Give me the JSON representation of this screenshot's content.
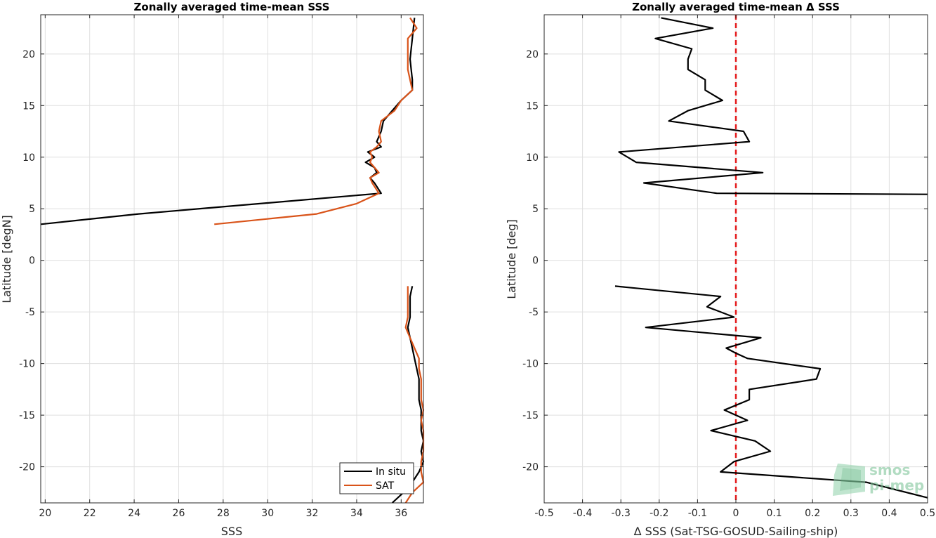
{
  "chart_data": [
    {
      "type": "line",
      "title": "Zonally averaged time-mean SSS",
      "xlabel": "SSS",
      "ylabel": "Latitude [degN]",
      "xlim": [
        19.8,
        37.0
      ],
      "ylim": [
        -23.5,
        23.8
      ],
      "xticks": [
        20,
        22,
        24,
        26,
        28,
        30,
        32,
        34,
        36
      ],
      "yticks": [
        -20,
        -15,
        -10,
        -5,
        0,
        5,
        10,
        15,
        20
      ],
      "grid": true,
      "legend_position": "bottom-right",
      "series": [
        {
          "name": "In situ",
          "color": "#000000",
          "segments": [
            [
              [
                36.6,
                23.5
              ],
              [
                36.5,
                21.5
              ],
              [
                36.4,
                19.5
              ],
              [
                36.5,
                17.5
              ],
              [
                36.5,
                16.5
              ],
              [
                36.0,
                15.5
              ],
              [
                35.6,
                14.5
              ],
              [
                35.2,
                13.5
              ],
              [
                35.1,
                12.5
              ],
              [
                34.9,
                11.5
              ],
              [
                35.1,
                11.0
              ],
              [
                34.5,
                10.5
              ],
              [
                34.8,
                10.0
              ],
              [
                34.4,
                9.5
              ],
              [
                34.8,
                9.0
              ],
              [
                34.9,
                8.5
              ],
              [
                34.6,
                8.0
              ],
              [
                34.8,
                7.5
              ],
              [
                35.1,
                6.5
              ],
              [
                24.2,
                4.5
              ],
              [
                19.8,
                3.5
              ]
            ],
            [
              [
                36.5,
                -2.5
              ],
              [
                36.4,
                -3.5
              ],
              [
                36.4,
                -5.5
              ],
              [
                36.3,
                -6.5
              ],
              [
                36.4,
                -7.5
              ],
              [
                36.5,
                -8.5
              ],
              [
                36.6,
                -9.5
              ],
              [
                36.7,
                -10.5
              ],
              [
                36.8,
                -11.5
              ],
              [
                36.8,
                -13.5
              ],
              [
                36.9,
                -14.5
              ],
              [
                36.9,
                -15.5
              ],
              [
                36.9,
                -16.5
              ],
              [
                37.0,
                -17.5
              ],
              [
                36.9,
                -18.5
              ],
              [
                37.0,
                -19.5
              ],
              [
                36.8,
                -20.5
              ],
              [
                36.5,
                -21.5
              ],
              [
                36.1,
                -22.5
              ],
              [
                35.6,
                -23.5
              ]
            ]
          ]
        },
        {
          "name": "SAT",
          "color": "#d95319",
          "segments": [
            [
              [
                36.4,
                23.5
              ],
              [
                36.7,
                22.5
              ],
              [
                36.3,
                21.5
              ],
              [
                36.3,
                20.5
              ],
              [
                36.3,
                19.5
              ],
              [
                36.3,
                18.5
              ],
              [
                36.4,
                17.5
              ],
              [
                36.5,
                16.5
              ],
              [
                36.0,
                15.5
              ],
              [
                35.7,
                14.5
              ],
              [
                35.1,
                13.5
              ],
              [
                35.0,
                12.5
              ],
              [
                35.1,
                11.5
              ],
              [
                34.9,
                11.0
              ],
              [
                34.6,
                10.5
              ],
              [
                34.7,
                10.0
              ],
              [
                34.6,
                9.5
              ],
              [
                34.8,
                9.0
              ],
              [
                35.0,
                8.5
              ],
              [
                34.6,
                8.0
              ],
              [
                34.7,
                7.5
              ],
              [
                35.0,
                6.5
              ],
              [
                34.0,
                5.5
              ],
              [
                32.2,
                4.5
              ],
              [
                27.6,
                3.5
              ]
            ],
            [
              [
                36.3,
                -2.5
              ],
              [
                36.3,
                -3.5
              ],
              [
                36.3,
                -5.5
              ],
              [
                36.2,
                -6.5
              ],
              [
                36.4,
                -7.5
              ],
              [
                36.6,
                -8.5
              ],
              [
                36.8,
                -9.5
              ],
              [
                36.8,
                -10.5
              ],
              [
                36.9,
                -11.5
              ],
              [
                36.9,
                -13.5
              ],
              [
                37.0,
                -14.5
              ],
              [
                36.9,
                -15.5
              ],
              [
                37.0,
                -16.5
              ],
              [
                37.0,
                -17.5
              ],
              [
                37.0,
                -18.5
              ],
              [
                36.9,
                -19.5
              ],
              [
                36.9,
                -20.5
              ],
              [
                37.0,
                -21.5
              ],
              [
                36.5,
                -22.5
              ],
              [
                36.2,
                -23.5
              ]
            ]
          ]
        }
      ]
    },
    {
      "type": "line",
      "title": "Zonally averaged time-mean Δ SSS",
      "xlabel": "Δ SSS (Sat-TSG-GOSUD-Sailing-ship)",
      "ylabel": "Latitude [deg]",
      "xlim": [
        -0.5,
        0.5
      ],
      "ylim": [
        -23.5,
        23.8
      ],
      "xticks": [
        -0.5,
        -0.4,
        -0.3,
        -0.2,
        -0.1,
        0,
        0.1,
        0.2,
        0.3,
        0.4,
        0.5
      ],
      "yticks": [
        -20,
        -15,
        -10,
        -5,
        0,
        5,
        10,
        15,
        20
      ],
      "grid": true,
      "zero_line": {
        "x": 0,
        "color": "#e41a1c",
        "style": "dashed"
      },
      "series": [
        {
          "color": "#000000",
          "segments": [
            [
              [
                -0.195,
                23.5
              ],
              [
                -0.06,
                22.5
              ],
              [
                -0.21,
                21.5
              ],
              [
                -0.115,
                20.5
              ],
              [
                -0.125,
                19.5
              ],
              [
                -0.125,
                18.5
              ],
              [
                -0.08,
                17.5
              ],
              [
                -0.08,
                16.5
              ],
              [
                -0.035,
                15.5
              ],
              [
                -0.125,
                14.5
              ],
              [
                -0.175,
                13.5
              ],
              [
                0.02,
                12.5
              ],
              [
                0.035,
                11.5
              ],
              [
                -0.305,
                10.5
              ],
              [
                -0.26,
                9.5
              ],
              [
                0.07,
                8.5
              ],
              [
                -0.24,
                7.5
              ],
              [
                -0.05,
                6.5
              ],
              [
                0.5,
                6.4
              ]
            ],
            [
              [
                -0.315,
                -2.5
              ],
              [
                -0.04,
                -3.5
              ],
              [
                -0.075,
                -4.5
              ],
              [
                -0.005,
                -5.5
              ],
              [
                -0.235,
                -6.5
              ],
              [
                0.065,
                -7.5
              ],
              [
                -0.025,
                -8.5
              ],
              [
                0.0,
                -9.0
              ],
              [
                0.03,
                -9.5
              ],
              [
                0.22,
                -10.5
              ],
              [
                0.21,
                -11.5
              ],
              [
                0.035,
                -12.5
              ],
              [
                0.035,
                -13.5
              ],
              [
                -0.03,
                -14.5
              ],
              [
                0.03,
                -15.5
              ],
              [
                -0.065,
                -16.5
              ],
              [
                0.05,
                -17.5
              ],
              [
                0.09,
                -18.5
              ],
              [
                -0.005,
                -19.5
              ],
              [
                -0.04,
                -20.5
              ],
              [
                0.34,
                -21.5
              ],
              [
                0.5,
                -23.0
              ]
            ]
          ]
        }
      ]
    }
  ],
  "logo": {
    "line1": "smos",
    "line2": "pi-mep"
  }
}
